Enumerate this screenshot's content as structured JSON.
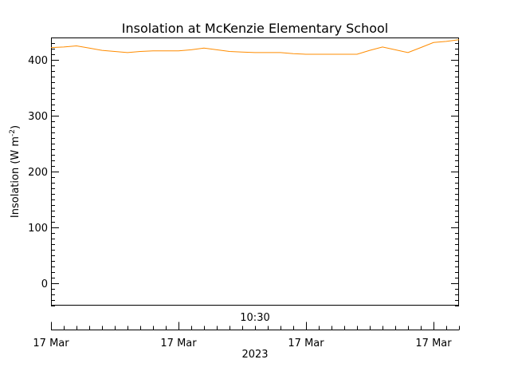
{
  "chart_data": {
    "type": "line",
    "title": "Insolation at McKenzie Elementary School",
    "ylabel": "Insolation (W m",
    "ylabel_superscript": "-2",
    "ylabel_close": ")",
    "xlabel": "2023",
    "ylim": [
      -40,
      440
    ],
    "yticks": [
      0,
      100,
      200,
      300,
      400
    ],
    "yticks_minor_step": 10,
    "grid": false,
    "line_color": "#FF8C00",
    "time_axis_label": "10:30",
    "date_axis": {
      "tick_labels": [
        "17 Mar",
        "17 Mar",
        "17 Mar",
        "17 Mar"
      ],
      "tick_positions": [
        0,
        10,
        20,
        30
      ],
      "xlim": [
        0,
        32
      ],
      "minor_step": 1
    },
    "series": [
      {
        "x": [
          0,
          1,
          2,
          3,
          4,
          5,
          6,
          7,
          8,
          9,
          10,
          11,
          12,
          13,
          14,
          15,
          16,
          17,
          18,
          19,
          20,
          21,
          22,
          23,
          24,
          25,
          26,
          27,
          28,
          29,
          30,
          31,
          32
        ],
        "values": [
          422,
          423,
          425,
          421,
          417,
          415,
          413,
          415,
          416,
          416,
          416,
          418,
          421,
          418,
          415,
          414,
          413,
          413,
          413,
          411,
          410,
          410,
          410,
          410,
          410,
          417,
          423,
          418,
          413,
          422,
          431,
          433,
          436
        ]
      }
    ]
  }
}
